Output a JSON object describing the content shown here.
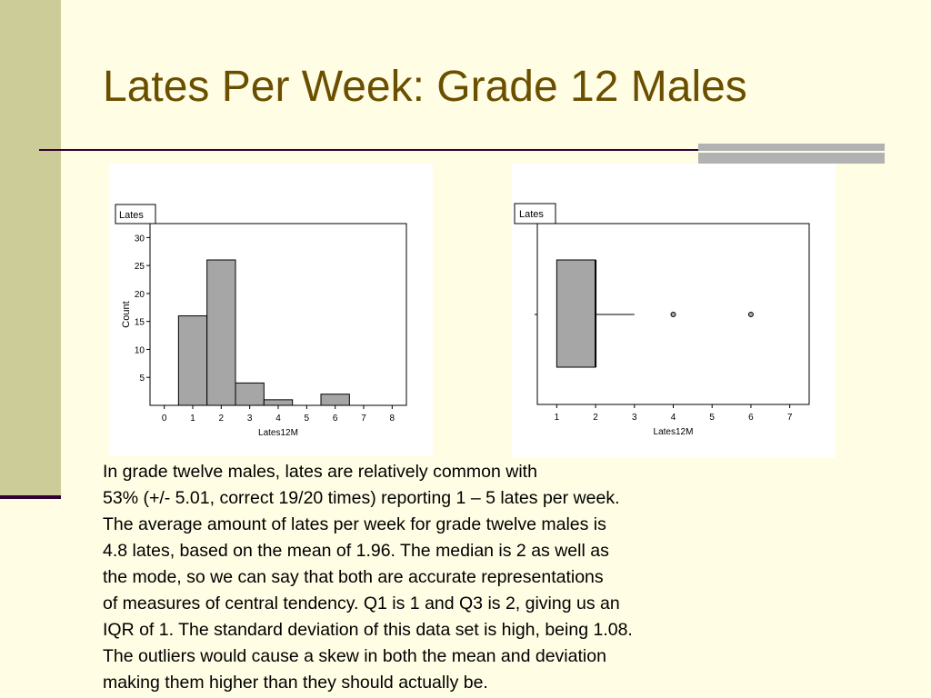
{
  "slide": {
    "title": "Lates Per Week: Grade 12 Males",
    "body_lines": [
      "In grade twelve males, lates are relatively common with",
      "53% (+/- 5.01, correct 19/20 times) reporting 1 – 5 lates per week.",
      "The average amount of lates per week for grade twelve males is",
      "4.8 lates, based on the mean of 1.96. The median is 2 as well as",
      "the mode, so we can say that both are accurate representations",
      "of measures of central tendency. Q1 is 1 and Q3 is 2, giving us an",
      "IQR of 1. The standard deviation of this data set is high, being 1.08.",
      "The outliers would cause a skew in both the mean and deviation",
      "making them higher than they should actually be."
    ]
  },
  "colors": {
    "title": "#6b4f00",
    "background": "#fffde4",
    "sidebar": "#cccc99",
    "rule": "#330033",
    "bar_fill": "#a6a6a6"
  },
  "chart_data": [
    {
      "type": "bar",
      "title": "Lates",
      "xlabel": "Lates12M",
      "ylabel": "Count",
      "x_ticks": [
        0,
        1,
        2,
        3,
        4,
        5,
        6,
        7,
        8
      ],
      "y_ticks": [
        5,
        10,
        15,
        20,
        25,
        30
      ],
      "xlim": [
        -0.5,
        8.5
      ],
      "ylim": [
        0,
        32.5
      ],
      "bins": [
        {
          "x": 1,
          "value": 16
        },
        {
          "x": 2,
          "value": 26
        },
        {
          "x": 3,
          "value": 4
        },
        {
          "x": 4,
          "value": 1
        },
        {
          "x": 5,
          "value": 0
        },
        {
          "x": 6,
          "value": 2
        }
      ],
      "grid": false
    },
    {
      "type": "box",
      "title": "Lates",
      "xlabel": "Lates12M",
      "x_ticks": [
        1,
        2,
        3,
        4,
        5,
        6,
        7
      ],
      "xlim": [
        0.5,
        7.5
      ],
      "q1": 1,
      "median": 2,
      "q3": 2,
      "whisker_low": 1,
      "whisker_high": 3,
      "outliers": [
        4,
        6
      ],
      "grid": false
    }
  ]
}
